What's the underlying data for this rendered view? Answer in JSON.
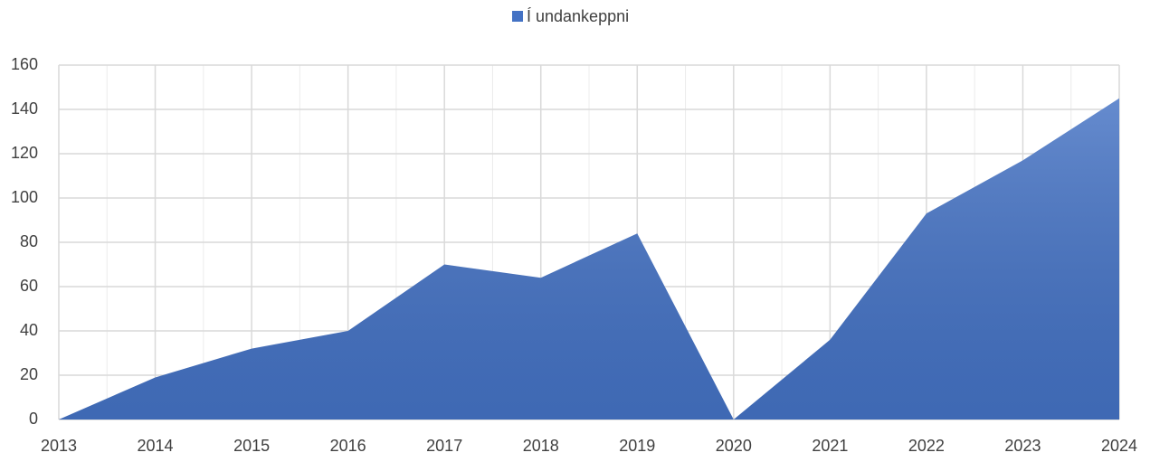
{
  "chart_data": {
    "type": "area",
    "categories": [
      "2013",
      "2014",
      "2015",
      "2016",
      "2017",
      "2018",
      "2019",
      "2020",
      "2021",
      "2022",
      "2023",
      "2024"
    ],
    "series": [
      {
        "name": "Í undankeppni",
        "color": "#4472c4",
        "values": [
          0,
          19,
          32,
          40,
          70,
          64,
          84,
          0,
          36,
          93,
          117,
          145
        ]
      }
    ],
    "ylim": [
      0,
      160
    ],
    "yticks": [
      0,
      20,
      40,
      60,
      80,
      100,
      120,
      140,
      160
    ],
    "grid": true,
    "legend": "top"
  }
}
